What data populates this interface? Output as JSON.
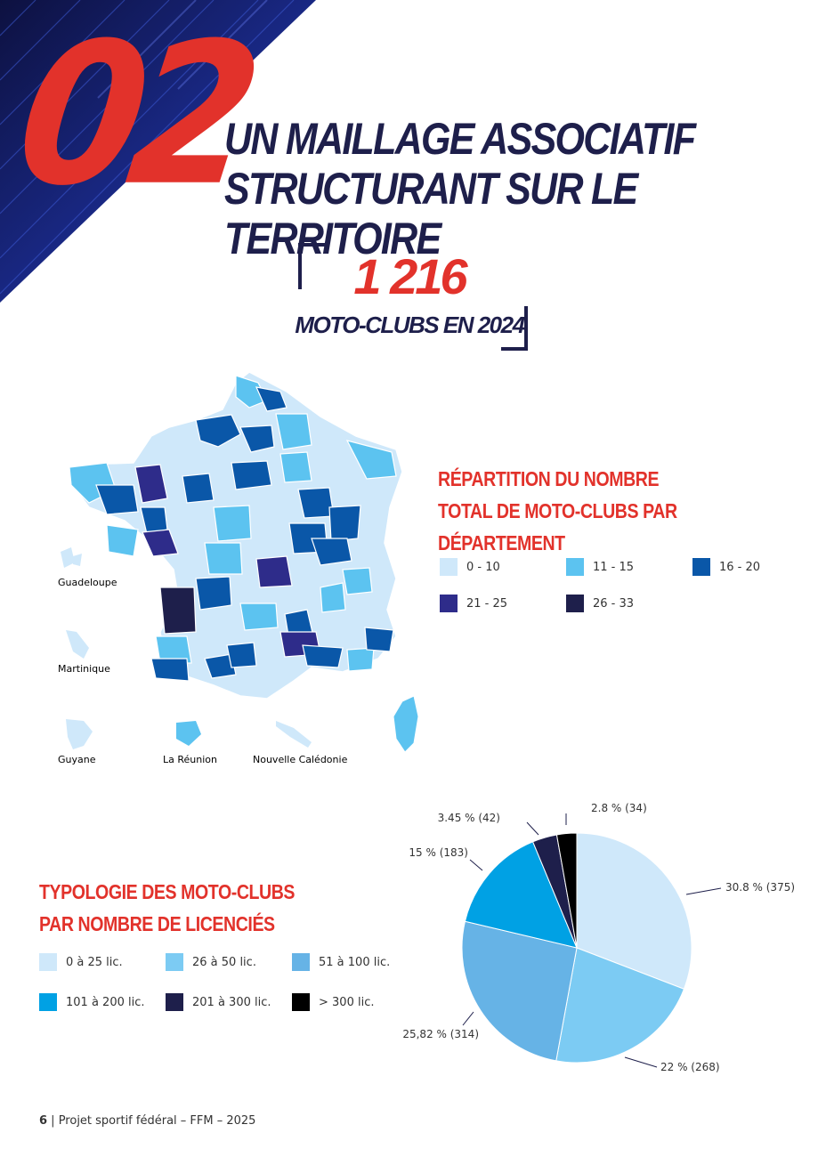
{
  "header": {
    "number": "02",
    "title_line1": "UN MAILLAGE ASSOCIATIF",
    "title_line2": "STRUCTURANT SUR LE TERRITOIRE"
  },
  "stat": {
    "value": "1 216",
    "label": "MOTO-CLUBS EN 2024"
  },
  "map_section": {
    "title_line1": "RÉPARTITION DU NOMBRE",
    "title_line2": "TOTAL DE MOTO-CLUBS PAR DÉPARTEMENT",
    "legend": [
      {
        "label": "0 - 10",
        "color": "#cfe8fa"
      },
      {
        "label": "11 - 15",
        "color": "#5cc3f0"
      },
      {
        "label": "16 - 20",
        "color": "#0a57a8"
      },
      {
        "label": "21 - 25",
        "color": "#2e2c8a"
      },
      {
        "label": "26 - 33",
        "color": "#1e1f4b"
      }
    ],
    "territories": {
      "guadeloupe": "Guadeloupe",
      "martinique": "Martinique",
      "guyane": "Guyane",
      "reunion": "La Réunion",
      "nouvelle_caledonie": "Nouvelle Calédonie"
    }
  },
  "typology_section": {
    "title_line1": "TYPOLOGIE DES MOTO-CLUBS",
    "title_line2": "PAR NOMBRE DE LICENCIÉS",
    "legend": [
      {
        "label": "0 à 25 lic.",
        "color": "#cfe8fa"
      },
      {
        "label": "26 à 50 lic.",
        "color": "#7ccbf3"
      },
      {
        "label": "51 à 100 lic.",
        "color": "#66b3e6"
      },
      {
        "label": "101 à 200 lic.",
        "color": "#00a1e4"
      },
      {
        "label": "201 à 300 lic.",
        "color": "#1e1f4b"
      },
      {
        "label": "> 300 lic.",
        "color": "#000000"
      }
    ]
  },
  "chart_data": {
    "type": "pie",
    "categories": [
      "0 à 25 lic.",
      "26 à 50 lic.",
      "51 à 100 lic.",
      "101 à 200 lic.",
      "201 à 300 lic.",
      "> 300 lic."
    ],
    "values": [
      375,
      268,
      314,
      183,
      42,
      34
    ],
    "labels": [
      "30.8 % (375)",
      "22 % (268)",
      "25,82 % (314)",
      "15 % (183)",
      "3.45 % (42)",
      "2.8 % (34)"
    ],
    "colors": [
      "#cfe8fa",
      "#7ccbf3",
      "#66b3e6",
      "#00a1e4",
      "#1e1f4b",
      "#000000"
    ]
  },
  "footer": {
    "page": "6",
    "text": " | Projet sportif fédéral – FFM – 2025"
  }
}
